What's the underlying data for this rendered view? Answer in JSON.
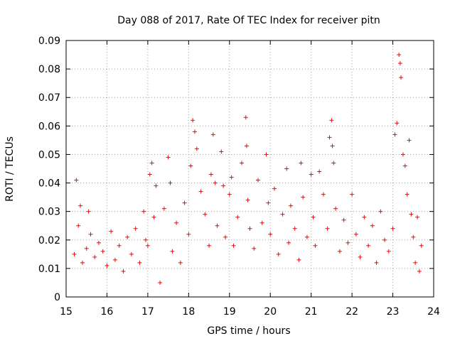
{
  "chart_data": {
    "type": "scatter",
    "title": "Day 088 of 2017, Rate Of TEC Index for receiver pitn",
    "xlabel": "GPS time / hours",
    "ylabel": "ROTI / TECUs",
    "xlim": [
      15,
      24
    ],
    "ylim": [
      0,
      0.09
    ],
    "xticks": [
      15,
      16,
      17,
      18,
      19,
      20,
      21,
      22,
      23,
      24
    ],
    "yticks": [
      0,
      0.01,
      0.02,
      0.03,
      0.04,
      0.05,
      0.06,
      0.07,
      0.08,
      0.09
    ],
    "ytick_labels": [
      "0",
      "0.01",
      "0.02",
      "0.03",
      "0.04",
      "0.05",
      "0.06",
      "0.07",
      "0.08",
      "0.09"
    ],
    "grid": true,
    "marker": "+",
    "marker_color": "#ff0000",
    "series": [
      {
        "name": "ROTI",
        "x": [
          15.2,
          15.25,
          15.3,
          15.35,
          15.4,
          15.5,
          15.55,
          15.6,
          15.7,
          15.8,
          15.9,
          16.0,
          16.1,
          16.2,
          16.3,
          16.4,
          16.5,
          16.6,
          16.7,
          16.8,
          16.9,
          16.95,
          17.0,
          17.05,
          17.1,
          17.15,
          17.2,
          17.3,
          17.4,
          17.5,
          17.55,
          17.6,
          17.7,
          17.8,
          17.9,
          18.0,
          18.05,
          18.1,
          18.15,
          18.2,
          18.3,
          18.4,
          18.5,
          18.55,
          18.6,
          18.65,
          18.7,
          18.8,
          18.85,
          18.9,
          19.0,
          19.05,
          19.1,
          19.2,
          19.3,
          19.4,
          19.42,
          19.45,
          19.5,
          19.6,
          19.7,
          19.8,
          19.9,
          19.95,
          20.0,
          20.1,
          20.2,
          20.3,
          20.4,
          20.45,
          20.5,
          20.6,
          20.7,
          20.75,
          20.8,
          20.9,
          21.0,
          21.05,
          21.1,
          21.2,
          21.3,
          21.4,
          21.45,
          21.5,
          21.52,
          21.55,
          21.6,
          21.7,
          21.8,
          21.9,
          22.0,
          22.1,
          22.2,
          22.3,
          22.4,
          22.5,
          22.6,
          22.7,
          22.8,
          22.9,
          23.0,
          23.05,
          23.1,
          23.15,
          23.18,
          23.2,
          23.25,
          23.3,
          23.35,
          23.4,
          23.45,
          23.5,
          23.55,
          23.6,
          23.65,
          23.7
        ],
        "y": [
          0.015,
          0.041,
          0.025,
          0.032,
          0.012,
          0.017,
          0.03,
          0.022,
          0.014,
          0.019,
          0.016,
          0.011,
          0.023,
          0.013,
          0.018,
          0.009,
          0.021,
          0.015,
          0.024,
          0.012,
          0.03,
          0.02,
          0.018,
          0.043,
          0.047,
          0.028,
          0.039,
          0.005,
          0.031,
          0.049,
          0.04,
          0.016,
          0.026,
          0.012,
          0.033,
          0.022,
          0.046,
          0.062,
          0.058,
          0.052,
          0.037,
          0.029,
          0.018,
          0.043,
          0.057,
          0.04,
          0.025,
          0.051,
          0.039,
          0.021,
          0.036,
          0.042,
          0.018,
          0.028,
          0.047,
          0.063,
          0.053,
          0.034,
          0.024,
          0.017,
          0.041,
          0.026,
          0.05,
          0.033,
          0.022,
          0.038,
          0.015,
          0.029,
          0.045,
          0.019,
          0.032,
          0.024,
          0.013,
          0.047,
          0.035,
          0.021,
          0.043,
          0.028,
          0.018,
          0.044,
          0.036,
          0.024,
          0.056,
          0.062,
          0.053,
          0.047,
          0.031,
          0.016,
          0.027,
          0.019,
          0.036,
          0.022,
          0.014,
          0.028,
          0.018,
          0.025,
          0.012,
          0.03,
          0.02,
          0.016,
          0.024,
          0.057,
          0.061,
          0.085,
          0.082,
          0.077,
          0.05,
          0.046,
          0.036,
          0.055,
          0.029,
          0.021,
          0.012,
          0.028,
          0.009,
          0.018
        ]
      }
    ]
  }
}
